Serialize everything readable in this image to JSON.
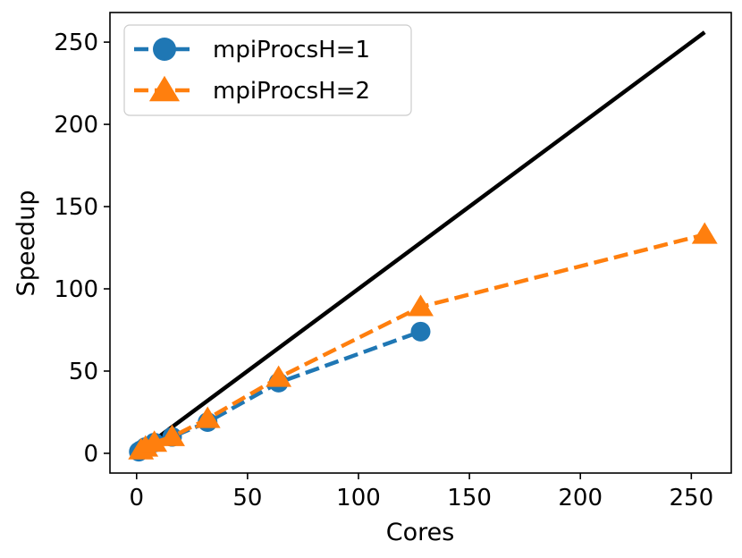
{
  "chart_data": {
    "type": "line",
    "xlabel": "Cores",
    "ylabel": "Speedup",
    "xlim": [
      -12,
      268
    ],
    "ylim": [
      -12,
      268
    ],
    "xticks": [
      0,
      50,
      100,
      150,
      200,
      250
    ],
    "yticks": [
      0,
      50,
      100,
      150,
      200,
      250
    ],
    "grid": false,
    "legend_position": "top-left",
    "series": [
      {
        "name": "mpiProcsH=1",
        "color": "#1f77b4",
        "marker": "circle",
        "linestyle": "dashed",
        "x": [
          1,
          2,
          4,
          8,
          16,
          32,
          64,
          128
        ],
        "y": [
          1,
          1.9,
          3.8,
          6.5,
          10,
          19,
          43,
          74
        ]
      },
      {
        "name": "mpiProcsH=2",
        "color": "#ff7f0e",
        "marker": "triangle",
        "linestyle": "dashed",
        "x": [
          2,
          4,
          8,
          16,
          32,
          64,
          128,
          256
        ],
        "y": [
          1.9,
          3.6,
          6.5,
          10,
          21,
          46,
          89,
          133
        ]
      },
      {
        "name": "",
        "color": "#000000",
        "marker": "none",
        "linestyle": "solid",
        "x": [
          1,
          256
        ],
        "y": [
          1,
          256
        ]
      }
    ]
  }
}
